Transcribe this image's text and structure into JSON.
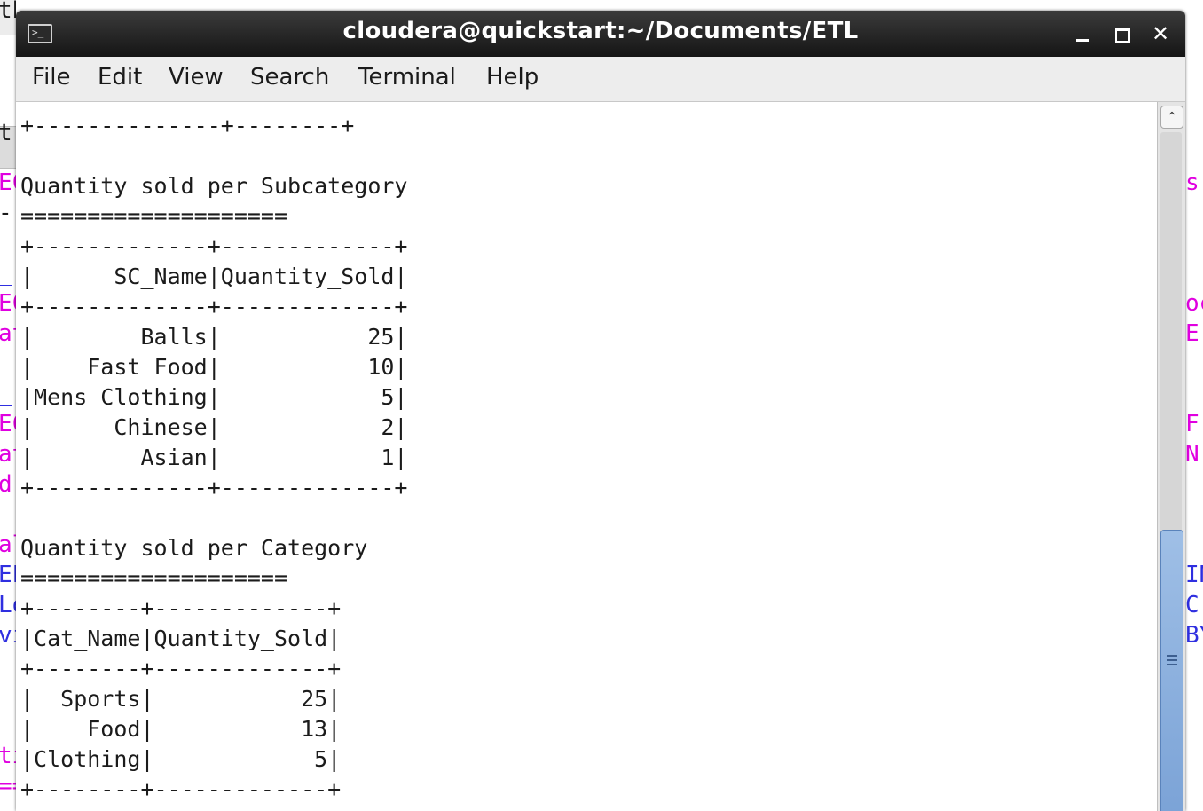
{
  "background_fragments": {
    "left": [
      {
        "text": "th",
        "color": "#1a1a1a"
      },
      {
        "text": "t",
        "color": "#1a1a1a"
      },
      {
        "text": "EC",
        "color": "#e000e0"
      },
      {
        "text": "-",
        "color": "#1a1a1a"
      },
      {
        "text": "_",
        "color": "#2f2fe0"
      },
      {
        "text": "EC",
        "color": "#e000e0"
      },
      {
        "text": "at",
        "color": "#e000e0"
      },
      {
        "text": "_",
        "color": "#2f2fe0"
      },
      {
        "text": "EC",
        "color": "#e000e0"
      },
      {
        "text": "at",
        "color": "#e000e0"
      },
      {
        "text": "d",
        "color": "#e000e0"
      },
      {
        "text": "al",
        "color": "#e000e0"
      },
      {
        "text": "EL",
        "color": "#2f2fe0"
      },
      {
        "text": "Lo",
        "color": "#2f2fe0"
      },
      {
        "text": "vi",
        "color": "#2f2fe0"
      },
      {
        "text": "ti",
        "color": "#e000e0"
      },
      {
        "text": "==",
        "color": "#e000e0"
      }
    ],
    "right": [
      {
        "text": "s",
        "color": "#e000e0"
      },
      {
        "text": "oc",
        "color": "#e000e0"
      },
      {
        "text": "E",
        "color": "#e000e0"
      },
      {
        "text": "F",
        "color": "#e000e0"
      },
      {
        "text": "N",
        "color": "#e000e0"
      },
      {
        "text": "IN",
        "color": "#2f2fe0"
      },
      {
        "text": "C",
        "color": "#2f2fe0"
      },
      {
        "text": "BY",
        "color": "#2f2fe0"
      }
    ]
  },
  "window": {
    "title": "cloudera@quickstart:~/Documents/ETL",
    "icon": "terminal-icon",
    "controls": {
      "minimize": "minimize-icon",
      "maximize": "maximize-icon",
      "close": "close-icon",
      "close_glyph": "✕"
    }
  },
  "menu": [
    "File",
    "Edit",
    "View",
    "Search",
    "Terminal",
    "Help"
  ],
  "terminal": {
    "lines": [
      "+--------------+--------+",
      "",
      "Quantity sold per Subcategory",
      "====================",
      "+-------------+-------------+",
      "|      SC_Name|Quantity_Sold|",
      "+-------------+-------------+",
      "|        Balls|           25|",
      "|    Fast Food|           10|",
      "|Mens Clothing|            5|",
      "|      Chinese|            2|",
      "|        Asian|            1|",
      "+-------------+-------------+",
      "",
      "Quantity sold per Category",
      "====================",
      "+--------+-------------+",
      "|Cat_Name|Quantity_Sold|",
      "+--------+-------------+",
      "|  Sports|           25|",
      "|    Food|           13|",
      "|Clothing|            5|",
      "+--------+-------------+"
    ]
  },
  "scrollbar": {
    "up_icon": "chevron-up-icon",
    "up_glyph": "⌃",
    "position_fraction": 0.6
  }
}
